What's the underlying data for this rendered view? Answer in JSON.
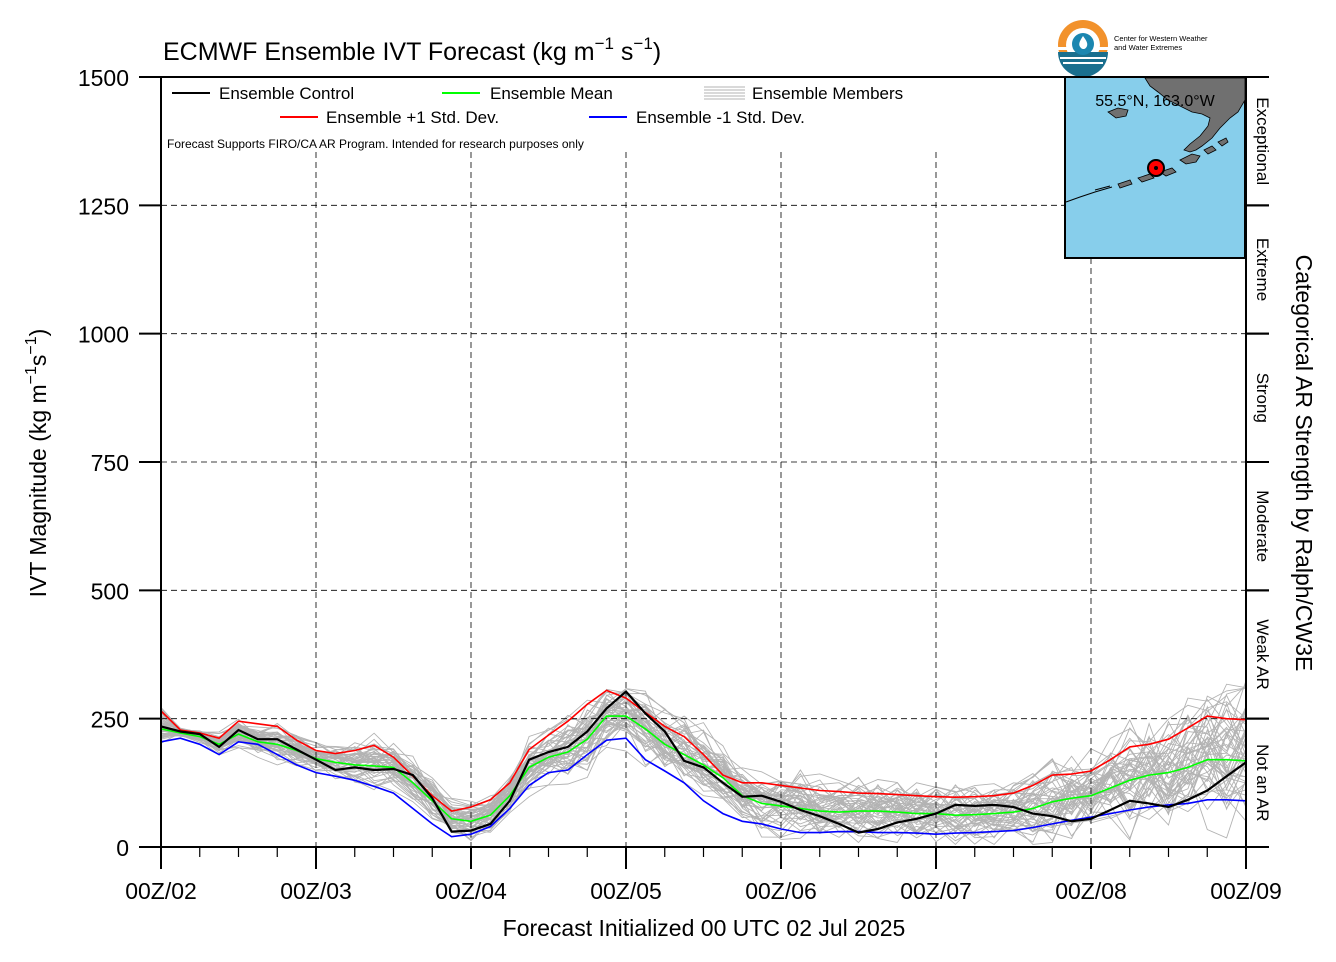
{
  "title_prefix": "ECMWF Ensemble IVT Forecast (kg m",
  "title_exp1": "−1",
  "title_mid": " s",
  "title_exp2": "−1",
  "title_suffix": ")",
  "logo": {
    "line1": "Center for Western Weather",
    "line2": "and Water Extremes"
  },
  "disclaimer": "Forecast Supports FIRO/CA AR Program. Intended for research purposes only",
  "legend": {
    "control": "Ensemble Control",
    "mean": "Ensemble Mean",
    "members": "Ensemble Members",
    "plus_sd": "Ensemble +1 Std. Dev.",
    "minus_sd": "Ensemble -1 Std. Dev."
  },
  "inset": {
    "location": "55.5°N, 163.0°W",
    "ocean_color": "#87ceeb",
    "land_color": "#707070",
    "marker_color": "#ff0000"
  },
  "ylabel": {
    "prefix": "IVT Magnitude (kg m",
    "exp1": "−1",
    "mid": "s",
    "exp2": "−1",
    "suffix": ")"
  },
  "right_label": "Categorical AR Strength by Ralph/CW3E",
  "xlabel": "Forecast Initialized 00 UTC 02 Jul 2025",
  "categories": [
    {
      "name": "Not an AR",
      "from": 0,
      "to": 250
    },
    {
      "name": "Weak AR",
      "from": 250,
      "to": 500
    },
    {
      "name": "Moderate",
      "from": 500,
      "to": 750
    },
    {
      "name": "Strong",
      "from": 750,
      "to": 1000
    },
    {
      "name": "Extreme",
      "from": 1000,
      "to": 1250
    },
    {
      "name": "Exceptional",
      "from": 1250,
      "to": 1500
    }
  ],
  "colors": {
    "control": "#000000",
    "mean": "#00ff00",
    "plus_sd": "#ff0000",
    "minus_sd": "#0000ff",
    "members": "#b3b3b3"
  },
  "chart_data": {
    "type": "line",
    "title": "ECMWF Ensemble IVT Forecast (kg m−1 s−1)",
    "xlabel": "Forecast Initialized 00 UTC 02 Jul 2025",
    "ylabel": "IVT Magnitude (kg m−1s−1)",
    "x_unit": "forecast hour",
    "x_tick_hours": [
      0,
      24,
      48,
      72,
      96,
      120,
      144,
      168
    ],
    "x_tick_labels": [
      "00Z/02",
      "00Z/03",
      "00Z/04",
      "00Z/05",
      "00Z/06",
      "00Z/07",
      "00Z/08",
      "00Z/09"
    ],
    "xlim": [
      0,
      168
    ],
    "ylim": [
      0,
      1500
    ],
    "y_ticks": [
      0,
      250,
      500,
      750,
      1000,
      1250,
      1500
    ],
    "grid": true,
    "legend_position": "top-left",
    "series": [
      {
        "name": "Ensemble Control",
        "x": [
          0,
          3,
          6,
          9,
          12,
          15,
          18,
          21,
          24,
          27,
          30,
          33,
          36,
          39,
          42,
          45,
          48,
          51,
          54,
          57,
          60,
          63,
          66,
          69,
          72,
          75,
          78,
          81,
          84,
          87,
          90,
          93,
          96,
          99,
          102,
          105,
          108,
          111,
          114,
          117,
          120,
          123,
          126,
          129,
          132,
          135,
          138,
          141,
          144,
          147,
          150,
          153,
          156,
          159,
          162,
          165,
          168
        ],
        "values": [
          235,
          225,
          220,
          195,
          228,
          210,
          210,
          190,
          170,
          150,
          155,
          150,
          152,
          140,
          95,
          30,
          32,
          45,
          90,
          170,
          185,
          195,
          225,
          270,
          303,
          260,
          225,
          168,
          155,
          125,
          98,
          100,
          88,
          72,
          60,
          45,
          28,
          35,
          48,
          55,
          65,
          82,
          80,
          82,
          78,
          65,
          60,
          50,
          55,
          72,
          90,
          85,
          78,
          92,
          110,
          138,
          165
        ]
      },
      {
        "name": "Ensemble Mean",
        "x": [
          0,
          3,
          6,
          9,
          12,
          15,
          18,
          21,
          24,
          27,
          30,
          33,
          36,
          39,
          42,
          45,
          48,
          51,
          54,
          57,
          60,
          63,
          66,
          69,
          72,
          75,
          78,
          81,
          84,
          87,
          90,
          93,
          96,
          99,
          102,
          105,
          108,
          111,
          114,
          117,
          120,
          123,
          126,
          129,
          132,
          135,
          138,
          141,
          144,
          147,
          150,
          153,
          156,
          159,
          162,
          165,
          168
        ],
        "values": [
          230,
          222,
          215,
          200,
          220,
          205,
          200,
          188,
          172,
          165,
          160,
          158,
          155,
          125,
          90,
          55,
          50,
          62,
          100,
          155,
          175,
          185,
          210,
          255,
          255,
          230,
          200,
          180,
          160,
          135,
          100,
          85,
          80,
          75,
          70,
          68,
          70,
          70,
          68,
          65,
          65,
          62,
          63,
          65,
          68,
          75,
          88,
          95,
          100,
          115,
          130,
          140,
          145,
          155,
          170,
          170,
          168
        ]
      },
      {
        "name": "Ensemble +1 Std. Dev.",
        "x": [
          0,
          3,
          6,
          9,
          12,
          15,
          18,
          21,
          24,
          27,
          30,
          33,
          36,
          39,
          42,
          45,
          48,
          51,
          54,
          57,
          60,
          63,
          66,
          69,
          72,
          75,
          78,
          81,
          84,
          87,
          90,
          93,
          96,
          99,
          102,
          105,
          108,
          111,
          114,
          117,
          120,
          123,
          126,
          129,
          132,
          135,
          138,
          141,
          144,
          147,
          150,
          153,
          156,
          159,
          162,
          165,
          168
        ],
        "values": [
          265,
          228,
          222,
          212,
          245,
          240,
          235,
          208,
          188,
          182,
          188,
          198,
          175,
          138,
          100,
          70,
          78,
          92,
          125,
          190,
          218,
          245,
          278,
          305,
          290,
          262,
          235,
          215,
          180,
          140,
          125,
          125,
          120,
          115,
          110,
          108,
          105,
          104,
          102,
          100,
          98,
          97,
          98,
          100,
          105,
          120,
          140,
          142,
          148,
          170,
          195,
          200,
          210,
          232,
          255,
          250,
          248
        ]
      },
      {
        "name": "Ensemble -1 Std. Dev.",
        "x": [
          0,
          3,
          6,
          9,
          12,
          15,
          18,
          21,
          24,
          27,
          30,
          33,
          36,
          39,
          42,
          45,
          48,
          51,
          54,
          57,
          60,
          63,
          66,
          69,
          72,
          75,
          78,
          81,
          84,
          87,
          90,
          93,
          96,
          99,
          102,
          105,
          108,
          111,
          114,
          117,
          120,
          123,
          126,
          129,
          132,
          135,
          138,
          141,
          144,
          147,
          150,
          153,
          156,
          159,
          162,
          165,
          168
        ],
        "values": [
          205,
          212,
          200,
          180,
          205,
          200,
          180,
          160,
          145,
          138,
          130,
          118,
          105,
          75,
          45,
          20,
          25,
          40,
          75,
          120,
          145,
          150,
          180,
          208,
          212,
          170,
          148,
          125,
          90,
          65,
          50,
          45,
          35,
          28,
          28,
          30,
          30,
          28,
          28,
          27,
          25,
          27,
          28,
          30,
          32,
          38,
          45,
          52,
          58,
          65,
          72,
          78,
          82,
          85,
          92,
          92,
          90
        ]
      }
    ],
    "members_note": "Ensemble Members: about 50 thin gray traces spread around the mean"
  }
}
